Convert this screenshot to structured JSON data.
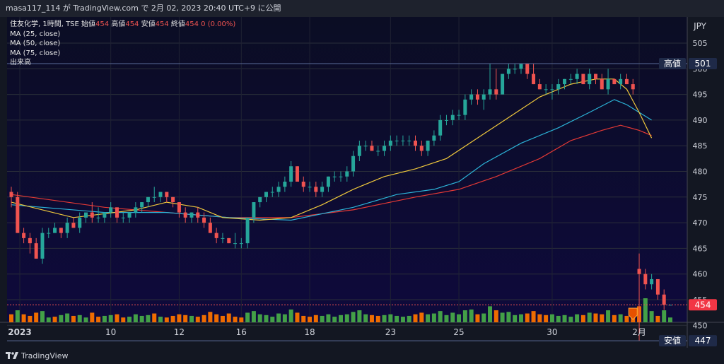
{
  "header": {
    "title": "masa117_114 が TradingView.com で 2月 02, 2023 20:40 UTC+9 に公開"
  },
  "legend": {
    "symbol": "住友化学, 1時間, TSE",
    "ohlc": [
      {
        "label": "始値",
        "value": "454"
      },
      {
        "label": "高値",
        "value": "454"
      },
      {
        "label": "安値",
        "value": "454"
      },
      {
        "label": "終値",
        "value": "454"
      }
    ],
    "change": "0 (0.00%)",
    "ma_lines": [
      "MA (25, close)",
      "MA (50, close)",
      "MA (75, close)"
    ],
    "volume_label": "出来高"
  },
  "footer": {
    "brand": "TradingView"
  },
  "colors": {
    "up": "#26a69a",
    "down": "#ef5350",
    "ma25": "#f0c93c",
    "ma50": "#2cb4d8",
    "ma75": "#e53935",
    "vol_up": "#43a047",
    "vol_down": "#ef6c00",
    "bg_top": "#0b0d24",
    "bg_bottom": "#0e0a3c"
  },
  "chart_data": {
    "type": "candlestick",
    "currency": "JPY",
    "y_ticks": [
      505,
      500,
      495,
      490,
      485,
      480,
      475,
      470,
      465,
      460,
      455,
      450
    ],
    "ylim": [
      444.5,
      507
    ],
    "x_ticks": [
      "2023",
      "10",
      "12",
      "16",
      "18",
      "23",
      "25",
      "30",
      "2月"
    ],
    "price_labels": [
      {
        "label": "高値",
        "value": "501"
      },
      {
        "label": "",
        "value": "454"
      },
      {
        "label": "安値",
        "value": "447"
      }
    ],
    "candles": [
      [
        476,
        477,
        473,
        475
      ],
      [
        475,
        476,
        468,
        468
      ],
      [
        468,
        469,
        466,
        467
      ],
      [
        467,
        468,
        464,
        466
      ],
      [
        466,
        467,
        463,
        463
      ],
      [
        463,
        469,
        462,
        468
      ],
      [
        468,
        469,
        467,
        468
      ],
      [
        468,
        470,
        468,
        469
      ],
      [
        469,
        469,
        467,
        468
      ],
      [
        468,
        471,
        467,
        470
      ],
      [
        470,
        471,
        469,
        469
      ],
      [
        469,
        472,
        468,
        471
      ],
      [
        471,
        472,
        470,
        472
      ],
      [
        472,
        474,
        470,
        471
      ],
      [
        471,
        473,
        470,
        471
      ],
      [
        471,
        472,
        470,
        472
      ],
      [
        472,
        474,
        471,
        473
      ],
      [
        473,
        473,
        470,
        471
      ],
      [
        471,
        472,
        470,
        471
      ],
      [
        471,
        472,
        470,
        472
      ],
      [
        472,
        474,
        471,
        473
      ],
      [
        473,
        474,
        472,
        474
      ],
      [
        474,
        475,
        473,
        475
      ],
      [
        475,
        477,
        474,
        475
      ],
      [
        475,
        476,
        474,
        476
      ],
      [
        476,
        476,
        474,
        475
      ],
      [
        475,
        475,
        473,
        474
      ],
      [
        474,
        474,
        471,
        472
      ],
      [
        472,
        473,
        470,
        471
      ],
      [
        471,
        472,
        470,
        472
      ],
      [
        472,
        473,
        470,
        471
      ],
      [
        471,
        472,
        469,
        470
      ],
      [
        470,
        471,
        468,
        468
      ],
      [
        468,
        469,
        466,
        467
      ],
      [
        467,
        468,
        466,
        467
      ],
      [
        467,
        467,
        466,
        466
      ],
      [
        466,
        468,
        465,
        466
      ],
      [
        466,
        467,
        465,
        466
      ],
      [
        466,
        471,
        465,
        471
      ],
      [
        471,
        474,
        470,
        474
      ],
      [
        474,
        475,
        473,
        475
      ],
      [
        475,
        476,
        474,
        476
      ],
      [
        476,
        477,
        475,
        476
      ],
      [
        476,
        478,
        475,
        477
      ],
      [
        477,
        479,
        476,
        478
      ],
      [
        478,
        482,
        477,
        481
      ],
      [
        481,
        481,
        478,
        478
      ],
      [
        478,
        479,
        476,
        477
      ],
      [
        477,
        478,
        476,
        477
      ],
      [
        477,
        478,
        475,
        476
      ],
      [
        476,
        478,
        475,
        477
      ],
      [
        477,
        479,
        476,
        479
      ],
      [
        479,
        480,
        478,
        479
      ],
      [
        479,
        480,
        478,
        479
      ],
      [
        479,
        481,
        478,
        480
      ],
      [
        480,
        484,
        479,
        483
      ],
      [
        483,
        486,
        482,
        485
      ],
      [
        485,
        486,
        484,
        485
      ],
      [
        485,
        486,
        484,
        484
      ],
      [
        484,
        485,
        483,
        484
      ],
      [
        484,
        486,
        483,
        485
      ],
      [
        485,
        487,
        484,
        486
      ],
      [
        486,
        487,
        485,
        486
      ],
      [
        486,
        487,
        485,
        486
      ],
      [
        486,
        487,
        485,
        486
      ],
      [
        486,
        487,
        484,
        485
      ],
      [
        485,
        486,
        483,
        484
      ],
      [
        484,
        486,
        483,
        486
      ],
      [
        486,
        488,
        485,
        487
      ],
      [
        487,
        491,
        486,
        490
      ],
      [
        490,
        491,
        489,
        490
      ],
      [
        490,
        492,
        489,
        491
      ],
      [
        491,
        492,
        490,
        491
      ],
      [
        491,
        495,
        490,
        494
      ],
      [
        494,
        496,
        493,
        495
      ],
      [
        495,
        496,
        493,
        494
      ],
      [
        494,
        496,
        492,
        495
      ],
      [
        495,
        501,
        494,
        496
      ],
      [
        496,
        500,
        494,
        495
      ],
      [
        495,
        499,
        495,
        499
      ],
      [
        499,
        501,
        498,
        500
      ],
      [
        500,
        501,
        499,
        500
      ],
      [
        500,
        501,
        499,
        501
      ],
      [
        501,
        501,
        498,
        499
      ],
      [
        499,
        501,
        497,
        497
      ],
      [
        497,
        498,
        496,
        496
      ],
      [
        496,
        497,
        495,
        496
      ],
      [
        496,
        497,
        494,
        496
      ],
      [
        496,
        498,
        495,
        497
      ],
      [
        497,
        498,
        496,
        498
      ],
      [
        498,
        499,
        497,
        498
      ],
      [
        498,
        500,
        497,
        499
      ],
      [
        499,
        499,
        497,
        497
      ],
      [
        497,
        500,
        496,
        499
      ],
      [
        499,
        499,
        497,
        498
      ],
      [
        498,
        499,
        496,
        496
      ],
      [
        496,
        500,
        495,
        498
      ],
      [
        498,
        498,
        497,
        497
      ],
      [
        497,
        499,
        496,
        498
      ],
      [
        498,
        499,
        497,
        497
      ],
      [
        497,
        498,
        495,
        496
      ],
      [
        461,
        464,
        447,
        460
      ],
      [
        460,
        461,
        457,
        458
      ],
      [
        458,
        460,
        457,
        459
      ],
      [
        459,
        459,
        455,
        456
      ],
      [
        456,
        457,
        453,
        454
      ],
      [
        454,
        454,
        454,
        454
      ]
    ],
    "volume": [
      [
        1.0,
        0
      ],
      [
        1.5,
        1
      ],
      [
        1.0,
        0
      ],
      [
        0.8,
        0
      ],
      [
        1.2,
        0
      ],
      [
        1.4,
        1
      ],
      [
        0.6,
        1
      ],
      [
        0.7,
        0
      ],
      [
        0.9,
        1
      ],
      [
        1.1,
        1
      ],
      [
        0.8,
        0
      ],
      [
        0.9,
        1
      ],
      [
        0.6,
        1
      ],
      [
        1.2,
        0
      ],
      [
        0.7,
        0
      ],
      [
        0.8,
        1
      ],
      [
        0.9,
        1
      ],
      [
        1.0,
        0
      ],
      [
        0.6,
        0
      ],
      [
        0.7,
        1
      ],
      [
        1.0,
        1
      ],
      [
        0.8,
        1
      ],
      [
        0.9,
        1
      ],
      [
        1.1,
        0
      ],
      [
        0.7,
        1
      ],
      [
        0.6,
        0
      ],
      [
        0.8,
        0
      ],
      [
        1.0,
        0
      ],
      [
        0.9,
        0
      ],
      [
        0.8,
        1
      ],
      [
        0.7,
        0
      ],
      [
        0.9,
        0
      ],
      [
        1.3,
        0
      ],
      [
        1.0,
        0
      ],
      [
        0.8,
        0
      ],
      [
        1.1,
        0
      ],
      [
        0.7,
        0
      ],
      [
        0.6,
        0
      ],
      [
        1.2,
        1
      ],
      [
        1.4,
        1
      ],
      [
        1.0,
        1
      ],
      [
        0.9,
        1
      ],
      [
        0.7,
        1
      ],
      [
        1.1,
        1
      ],
      [
        1.0,
        1
      ],
      [
        1.6,
        1
      ],
      [
        1.2,
        0
      ],
      [
        0.8,
        0
      ],
      [
        0.7,
        0
      ],
      [
        0.9,
        0
      ],
      [
        0.8,
        1
      ],
      [
        1.0,
        1
      ],
      [
        0.7,
        1
      ],
      [
        0.9,
        1
      ],
      [
        1.0,
        1
      ],
      [
        1.3,
        1
      ],
      [
        1.5,
        1
      ],
      [
        1.0,
        1
      ],
      [
        0.9,
        0
      ],
      [
        0.8,
        0
      ],
      [
        0.9,
        1
      ],
      [
        1.0,
        1
      ],
      [
        0.8,
        1
      ],
      [
        0.7,
        1
      ],
      [
        0.8,
        1
      ],
      [
        1.0,
        0
      ],
      [
        1.2,
        0
      ],
      [
        1.0,
        1
      ],
      [
        1.1,
        1
      ],
      [
        1.4,
        1
      ],
      [
        0.9,
        1
      ],
      [
        1.2,
        1
      ],
      [
        1.0,
        1
      ],
      [
        1.5,
        1
      ],
      [
        1.6,
        1
      ],
      [
        1.0,
        0
      ],
      [
        1.1,
        1
      ],
      [
        2.0,
        1
      ],
      [
        1.5,
        0
      ],
      [
        1.2,
        1
      ],
      [
        1.3,
        1
      ],
      [
        0.9,
        1
      ],
      [
        1.0,
        1
      ],
      [
        1.1,
        0
      ],
      [
        1.4,
        0
      ],
      [
        1.0,
        0
      ],
      [
        0.9,
        0
      ],
      [
        1.0,
        1
      ],
      [
        0.8,
        1
      ],
      [
        0.9,
        1
      ],
      [
        0.7,
        1
      ],
      [
        1.0,
        1
      ],
      [
        0.9,
        0
      ],
      [
        1.2,
        1
      ],
      [
        1.1,
        0
      ],
      [
        1.0,
        0
      ],
      [
        1.5,
        1
      ],
      [
        0.9,
        0
      ],
      [
        1.0,
        1
      ],
      [
        0.8,
        0
      ],
      [
        1.1,
        0
      ],
      [
        2.0,
        0
      ],
      [
        3.0,
        1
      ],
      [
        1.4,
        1
      ],
      [
        0.8,
        0
      ],
      [
        1.5,
        1
      ],
      [
        0.6,
        1
      ]
    ],
    "ma25": [
      [
        0,
        474
      ],
      [
        10,
        471
      ],
      [
        20,
        472.5
      ],
      [
        25,
        474
      ],
      [
        30,
        473
      ],
      [
        34,
        471
      ],
      [
        40,
        470.5
      ],
      [
        45,
        471
      ],
      [
        50,
        473.5
      ],
      [
        55,
        476.5
      ],
      [
        60,
        479
      ],
      [
        65,
        480.5
      ],
      [
        70,
        482.5
      ],
      [
        75,
        486.5
      ],
      [
        80,
        490.5
      ],
      [
        85,
        494.5
      ],
      [
        90,
        497
      ],
      [
        94,
        498
      ],
      [
        97,
        498
      ],
      [
        99,
        496
      ],
      [
        101,
        491.5
      ],
      [
        103,
        486.5
      ]
    ],
    "ma50": [
      [
        0,
        473.5
      ],
      [
        15,
        472
      ],
      [
        25,
        472
      ],
      [
        35,
        471
      ],
      [
        45,
        470.5
      ],
      [
        55,
        473
      ],
      [
        62,
        475.5
      ],
      [
        68,
        476.5
      ],
      [
        72,
        478
      ],
      [
        76,
        481.5
      ],
      [
        82,
        485.5
      ],
      [
        88,
        488.5
      ],
      [
        93,
        491.5
      ],
      [
        97,
        494
      ],
      [
        99,
        493
      ],
      [
        101,
        491.5
      ],
      [
        103,
        490
      ]
    ],
    "ma75": [
      [
        0,
        475.5
      ],
      [
        15,
        473
      ],
      [
        25,
        472
      ],
      [
        35,
        471
      ],
      [
        45,
        471
      ],
      [
        55,
        472.5
      ],
      [
        65,
        475
      ],
      [
        72,
        476.5
      ],
      [
        78,
        479
      ],
      [
        85,
        482.5
      ],
      [
        90,
        486
      ],
      [
        95,
        488
      ],
      [
        98,
        489
      ],
      [
        101,
        488
      ],
      [
        103,
        487
      ]
    ]
  }
}
